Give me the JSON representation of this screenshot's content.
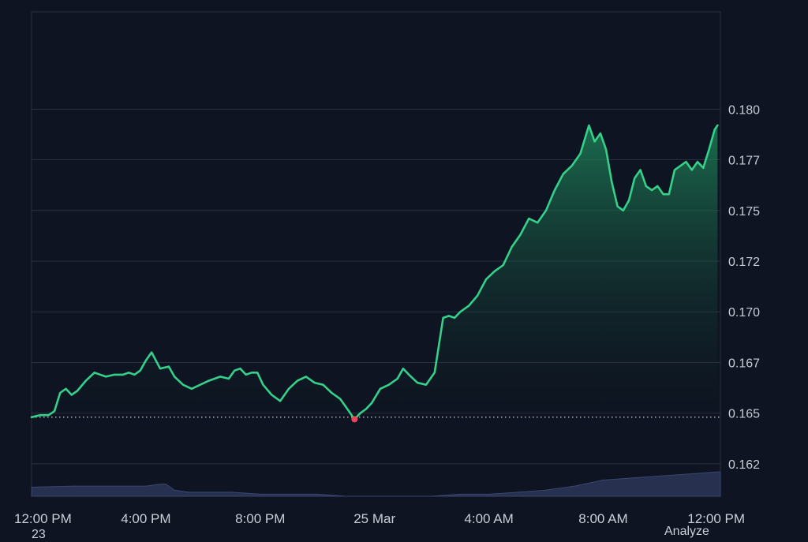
{
  "chart_data": {
    "type": "area",
    "y_axis_ticks": [
      "0.180",
      "0.177",
      "0.175",
      "0.172",
      "0.170",
      "0.167",
      "0.165",
      "0.162"
    ],
    "y_tick_values": [
      0.18,
      0.1775,
      0.175,
      0.1725,
      0.17,
      0.1675,
      0.165,
      0.1625
    ],
    "x_axis_ticks": [
      "12:00 PM",
      "4:00 PM",
      "8:00 PM",
      "25 Mar",
      "4:00 AM",
      "8:00 AM",
      "12:00 PM"
    ],
    "x_tick_hours": [
      0,
      4,
      8,
      12,
      16,
      20,
      24
    ],
    "ylim": [
      0.1609,
      0.1848
    ],
    "xlim": [
      0,
      24.1
    ],
    "baseline_value": 0.1648,
    "low_point": {
      "x": 11.3,
      "y": 0.1647
    },
    "line_color": "#35d08a",
    "low_marker_color": "#e8475a",
    "volume_color": "#27304f",
    "grid": true,
    "price_series": {
      "x": [
        0,
        0.3,
        0.6,
        0.8,
        1.0,
        1.2,
        1.4,
        1.6,
        1.9,
        2.2,
        2.6,
        2.9,
        3.2,
        3.4,
        3.6,
        3.8,
        4.0,
        4.2,
        4.5,
        4.8,
        5.0,
        5.3,
        5.6,
        5.9,
        6.2,
        6.6,
        6.9,
        7.1,
        7.3,
        7.5,
        7.7,
        7.9,
        8.1,
        8.4,
        8.7,
        9.0,
        9.3,
        9.6,
        9.9,
        10.2,
        10.5,
        10.8,
        11.0,
        11.3,
        11.5,
        11.7,
        11.9,
        12.2,
        12.5,
        12.8,
        13.0,
        13.2,
        13.5,
        13.8,
        14.1,
        14.4,
        14.6,
        14.8,
        15.0,
        15.3,
        15.6,
        15.9,
        16.2,
        16.5,
        16.8,
        17.1,
        17.4,
        17.7,
        18.0,
        18.3,
        18.6,
        18.9,
        19.2,
        19.5,
        19.7,
        19.9,
        20.1,
        20.3,
        20.5,
        20.7,
        20.9,
        21.1,
        21.3,
        21.5,
        21.7,
        21.9,
        22.1,
        22.3,
        22.5,
        22.7,
        22.9,
        23.1,
        23.3,
        23.5,
        23.7,
        23.9,
        24.0
      ],
      "y": [
        0.1648,
        0.1649,
        0.1649,
        0.1651,
        0.166,
        0.1662,
        0.1659,
        0.1661,
        0.1666,
        0.167,
        0.1668,
        0.1669,
        0.1669,
        0.167,
        0.1669,
        0.1671,
        0.1676,
        0.168,
        0.1672,
        0.1673,
        0.1668,
        0.1664,
        0.1662,
        0.1664,
        0.1666,
        0.1668,
        0.1667,
        0.1671,
        0.1672,
        0.1669,
        0.167,
        0.167,
        0.1664,
        0.1659,
        0.1656,
        0.1662,
        0.1666,
        0.1668,
        0.1665,
        0.1664,
        0.166,
        0.1657,
        0.1653,
        0.1647,
        0.165,
        0.1652,
        0.1655,
        0.1662,
        0.1664,
        0.1667,
        0.1672,
        0.1669,
        0.1665,
        0.1664,
        0.167,
        0.1697,
        0.1698,
        0.1697,
        0.17,
        0.1703,
        0.1708,
        0.1716,
        0.172,
        0.1723,
        0.1732,
        0.1738,
        0.1746,
        0.1744,
        0.175,
        0.176,
        0.1768,
        0.1772,
        0.1778,
        0.1792,
        0.1784,
        0.1788,
        0.178,
        0.1764,
        0.1752,
        0.175,
        0.1755,
        0.1766,
        0.177,
        0.1762,
        0.176,
        0.1762,
        0.1758,
        0.1758,
        0.177,
        0.1772,
        0.1774,
        0.177,
        0.1774,
        0.1771,
        0.178,
        0.179,
        0.1792
      ]
    },
    "volume_series": {
      "x": [
        0,
        1.5,
        3.0,
        4.0,
        4.5,
        4.7,
        5.0,
        5.5,
        6.0,
        7.0,
        8.0,
        9.0,
        10.0,
        11.0,
        12.0,
        13.0,
        14.0,
        15.0,
        16.0,
        17.0,
        18.0,
        19.0,
        20.0,
        21.0,
        22.0,
        23.0,
        24.0
      ],
      "y": [
        0.16135,
        0.1614,
        0.1614,
        0.1614,
        0.1615,
        0.1615,
        0.1612,
        0.1611,
        0.1611,
        0.1611,
        0.161,
        0.161,
        0.161,
        0.1609,
        0.1609,
        0.1609,
        0.1609,
        0.161,
        0.161,
        0.1611,
        0.1612,
        0.1614,
        0.1617,
        0.1618,
        0.1619,
        0.162,
        0.1621
      ]
    }
  },
  "footer": {
    "left": "23",
    "right": "Analyze"
  }
}
